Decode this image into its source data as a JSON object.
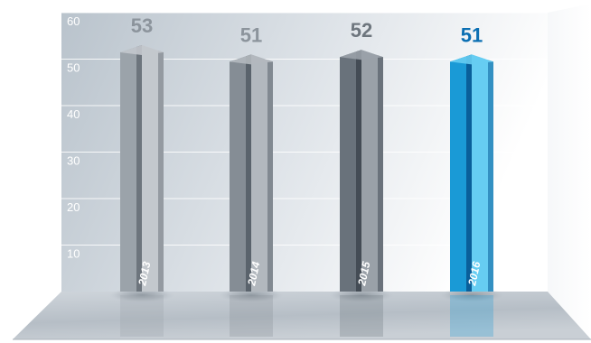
{
  "chart_data": {
    "type": "bar",
    "categories": [
      "2013",
      "2014",
      "2015",
      "2016"
    ],
    "values": [
      53,
      51,
      52,
      51
    ],
    "ylim": [
      0,
      60
    ],
    "yticks": [
      "10",
      "20",
      "30",
      "40",
      "50",
      "60"
    ],
    "grid": true,
    "title": "",
    "xlabel": "",
    "ylabel": "",
    "colors": {
      "bars": [
        "#9ba3aa",
        "#858d95",
        "#69727b",
        "#1a9ad6"
      ],
      "bars_dark": [
        "#6d757d",
        "#5a636c",
        "#444c55",
        "#0a5f9a"
      ],
      "bars_light": [
        "#c3c8cd",
        "#b2b8be",
        "#9aa1a8",
        "#66cdf2"
      ],
      "value_labels": [
        "#8c949c",
        "#8c949c",
        "#6e767e",
        "#0b6fb3"
      ],
      "wall": "#c4ccd4",
      "floor": "#b8bfc6"
    }
  }
}
